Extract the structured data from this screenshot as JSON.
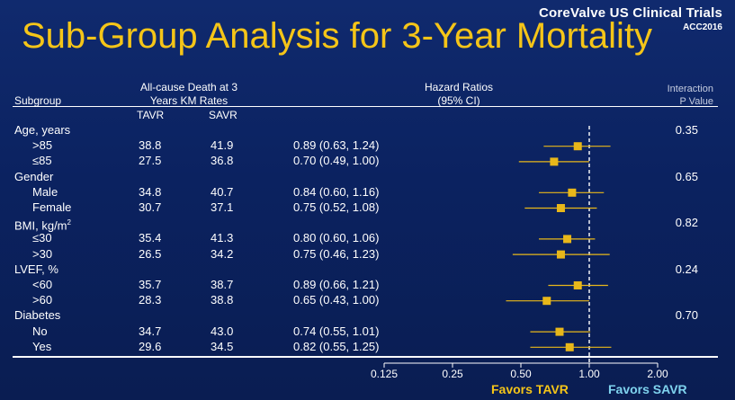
{
  "brand": {
    "line1": "CoreValve US Clinical Trials",
    "line2": "ACC2016"
  },
  "title": "Sub-Group Analysis for 3-Year Mortality",
  "headers": {
    "subgroup": "Subgroup",
    "rates_line1": "All-cause Death at 3",
    "rates_line2": "Years KM Rates",
    "tavr": "TAVR",
    "savr": "SAVR",
    "hr_line1": "Hazard Ratios",
    "hr_line2": "(95% CI)",
    "interaction_line1": "Interaction",
    "interaction_line2": "P Value"
  },
  "x_ticks": [
    "0.125",
    "0.25",
    "0.50",
    "1.00",
    "2.00"
  ],
  "favors_left": "Favors  TAVR",
  "favors_right": "Favors SAVR",
  "colors": {
    "title": "#f5c518",
    "marker": "#e8b71a",
    "favors_left": "#f5c518",
    "favors_right": "#7fd3ee"
  },
  "chart_data": {
    "type": "forest",
    "x_scale": "log2",
    "xlim": [
      0.125,
      2.0
    ],
    "reference_line": 1.0,
    "groups": [
      {
        "label": "Age, years",
        "p_value": "0.35",
        "rows": [
          {
            "label": ">85",
            "tavr": "38.8",
            "savr": "41.9",
            "ci_text": "0.89 (0.63, 1.24)",
            "hr": 0.89,
            "lo": 0.63,
            "hi": 1.24
          },
          {
            "label": "≤85",
            "tavr": "27.5",
            "savr": "36.8",
            "ci_text": "0.70 (0.49, 1.00)",
            "hr": 0.7,
            "lo": 0.49,
            "hi": 1.0
          }
        ]
      },
      {
        "label": "Gender",
        "p_value": "0.65",
        "rows": [
          {
            "label": "Male",
            "tavr": "34.8",
            "savr": "40.7",
            "ci_text": "0.84 (0.60, 1.16)",
            "hr": 0.84,
            "lo": 0.6,
            "hi": 1.16
          },
          {
            "label": "Female",
            "tavr": "30.7",
            "savr": "37.1",
            "ci_text": "0.75 (0.52, 1.08)",
            "hr": 0.75,
            "lo": 0.52,
            "hi": 1.08
          }
        ]
      },
      {
        "label": "BMI, kg/m",
        "label_sup": "2",
        "p_value": "0.82",
        "rows": [
          {
            "label": "≤30",
            "tavr": "35.4",
            "savr": "41.3",
            "ci_text": "0.80 (0.60, 1.06)",
            "hr": 0.8,
            "lo": 0.6,
            "hi": 1.06
          },
          {
            "label": ">30",
            "tavr": "26.5",
            "savr": "34.2",
            "ci_text": "0.75 (0.46, 1.23)",
            "hr": 0.75,
            "lo": 0.46,
            "hi": 1.23
          }
        ]
      },
      {
        "label": "LVEF, %",
        "p_value": "0.24",
        "rows": [
          {
            "label": "<60",
            "tavr": "35.7",
            "savr": "38.7",
            "ci_text": "0.89 (0.66, 1.21)",
            "hr": 0.89,
            "lo": 0.66,
            "hi": 1.21
          },
          {
            "label": ">60",
            "tavr": "28.3",
            "savr": "38.8",
            "ci_text": "0.65 (0.43, 1.00)",
            "hr": 0.65,
            "lo": 0.43,
            "hi": 1.0
          }
        ]
      },
      {
        "label": "Diabetes",
        "p_value": "0.70",
        "rows": [
          {
            "label": "No",
            "tavr": "34.7",
            "savr": "43.0",
            "ci_text": "0.74 (0.55, 1.01)",
            "hr": 0.74,
            "lo": 0.55,
            "hi": 1.01
          },
          {
            "label": "Yes",
            "tavr": "29.6",
            "savr": "34.5",
            "ci_text": "0.82 (0.55, 1.25)",
            "hr": 0.82,
            "lo": 0.55,
            "hi": 1.25
          }
        ]
      }
    ]
  }
}
